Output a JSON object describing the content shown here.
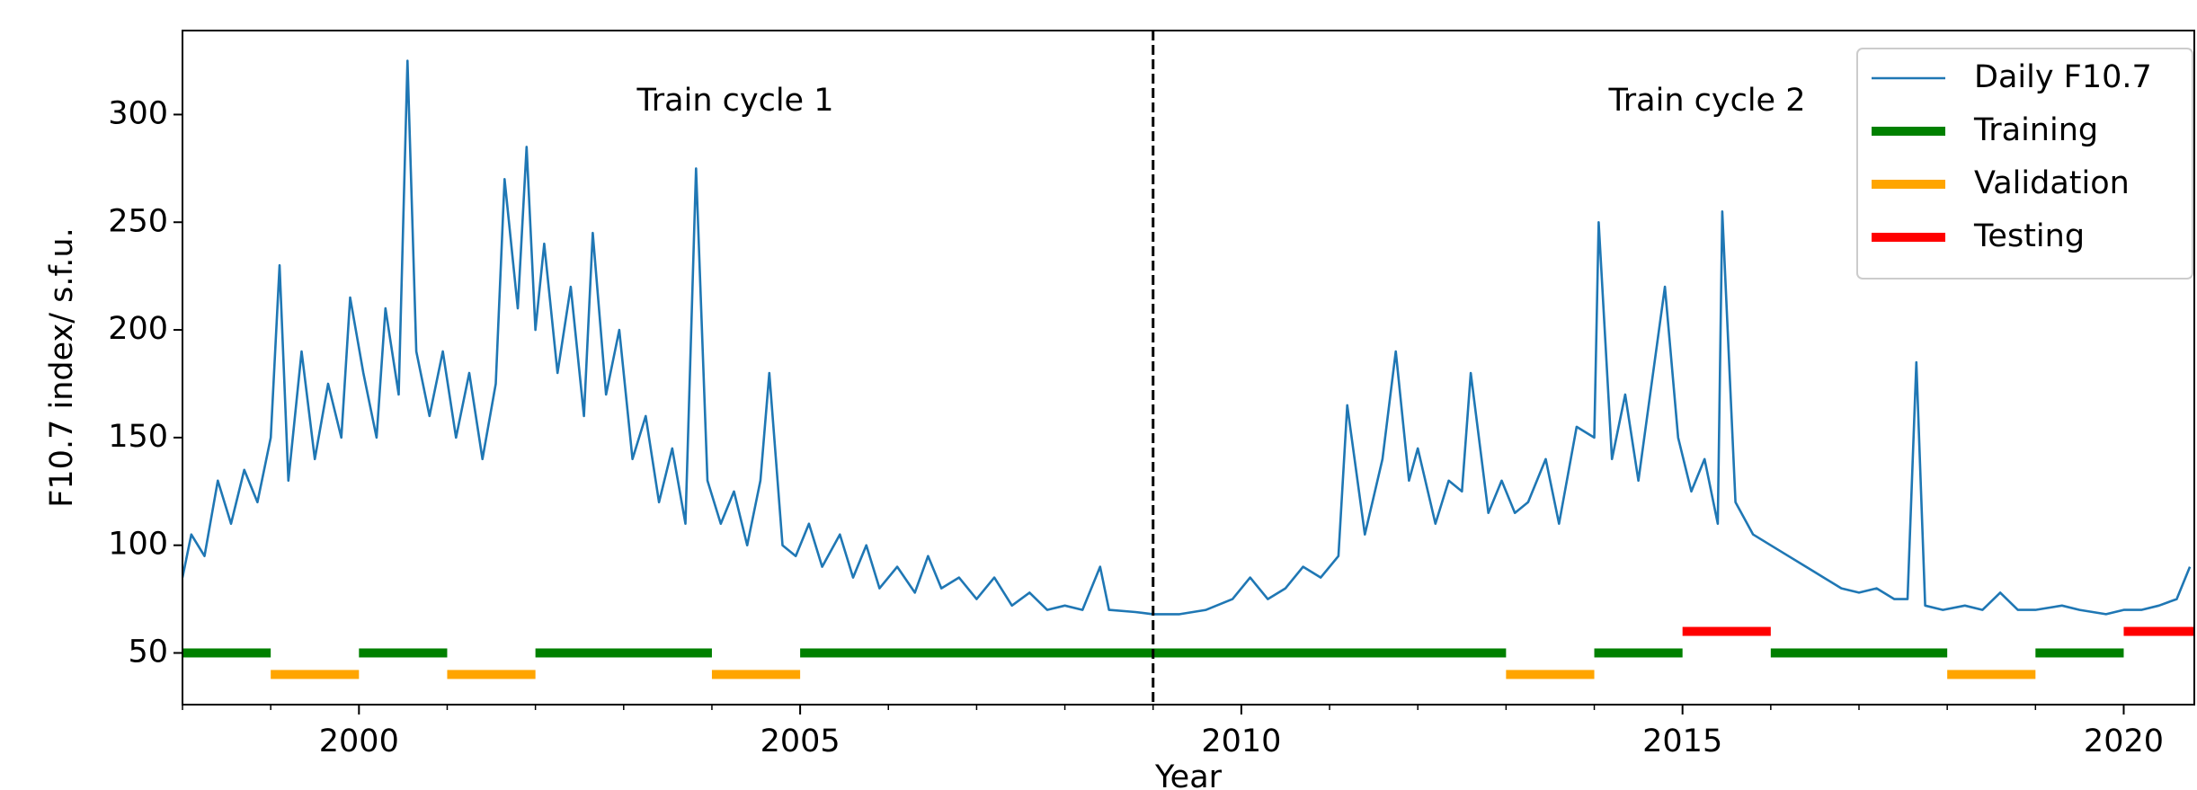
{
  "chart_data": {
    "type": "line",
    "xlabel": "Year",
    "ylabel": "F10.7 index/ s.f.u.",
    "annotations": [
      "Train cycle 1",
      "Train cycle 2"
    ],
    "xlim": [
      1998,
      2020.8
    ],
    "ylim": [
      26,
      339
    ],
    "xticks": [
      2000,
      2005,
      2010,
      2015,
      2020
    ],
    "xminorticks": [
      1998,
      1999,
      2001,
      2002,
      2003,
      2004,
      2006,
      2007,
      2008,
      2009,
      2011,
      2012,
      2013,
      2014,
      2016,
      2017,
      2018,
      2019
    ],
    "yticks": [
      50,
      100,
      150,
      200,
      250,
      300
    ],
    "vlines": [
      2009
    ],
    "legend": "upper right",
    "series": [
      {
        "name": "Daily F10.7",
        "color": "#1f77b4",
        "x": [
          1998.0,
          1998.1,
          1998.25,
          1998.4,
          1998.55,
          1998.7,
          1998.85,
          1999.0,
          1999.1,
          1999.2,
          1999.35,
          1999.5,
          1999.65,
          1999.8,
          1999.9,
          2000.05,
          2000.2,
          2000.3,
          2000.45,
          2000.55,
          2000.65,
          2000.8,
          2000.95,
          2001.1,
          2001.25,
          2001.4,
          2001.55,
          2001.65,
          2001.8,
          2001.9,
          2002.0,
          2002.1,
          2002.25,
          2002.4,
          2002.55,
          2002.65,
          2002.8,
          2002.95,
          2003.1,
          2003.25,
          2003.4,
          2003.55,
          2003.7,
          2003.82,
          2003.95,
          2004.1,
          2004.25,
          2004.4,
          2004.55,
          2004.65,
          2004.8,
          2004.95,
          2005.1,
          2005.25,
          2005.45,
          2005.6,
          2005.75,
          2005.9,
          2006.1,
          2006.3,
          2006.45,
          2006.6,
          2006.8,
          2007.0,
          2007.2,
          2007.4,
          2007.6,
          2007.8,
          2008.0,
          2008.2,
          2008.4,
          2008.5,
          2008.8,
          2009.0,
          2009.3,
          2009.6,
          2009.9,
          2010.1,
          2010.3,
          2010.5,
          2010.7,
          2010.9,
          2011.1,
          2011.2,
          2011.4,
          2011.6,
          2011.75,
          2011.9,
          2012.0,
          2012.2,
          2012.35,
          2012.5,
          2012.6,
          2012.8,
          2012.95,
          2013.1,
          2013.25,
          2013.45,
          2013.6,
          2013.8,
          2014.0,
          2014.05,
          2014.2,
          2014.35,
          2014.5,
          2014.65,
          2014.8,
          2014.95,
          2015.1,
          2015.25,
          2015.4,
          2015.45,
          2015.6,
          2015.8,
          2016.0,
          2016.2,
          2016.4,
          2016.6,
          2016.8,
          2017.0,
          2017.2,
          2017.4,
          2017.55,
          2017.65,
          2017.75,
          2017.95,
          2018.2,
          2018.4,
          2018.6,
          2018.8,
          2019.0,
          2019.3,
          2019.5,
          2019.8,
          2020.0,
          2020.2,
          2020.4,
          2020.6,
          2020.75
        ],
        "values": [
          85,
          105,
          95,
          130,
          110,
          135,
          120,
          150,
          230,
          130,
          190,
          140,
          175,
          150,
          215,
          180,
          150,
          210,
          170,
          325,
          190,
          160,
          190,
          150,
          180,
          140,
          175,
          270,
          210,
          285,
          200,
          240,
          180,
          220,
          160,
          245,
          170,
          200,
          140,
          160,
          120,
          145,
          110,
          275,
          130,
          110,
          125,
          100,
          130,
          180,
          100,
          95,
          110,
          90,
          105,
          85,
          100,
          80,
          90,
          78,
          95,
          80,
          85,
          75,
          85,
          72,
          78,
          70,
          72,
          70,
          90,
          70,
          69,
          68,
          68,
          70,
          75,
          85,
          75,
          80,
          90,
          85,
          95,
          165,
          105,
          140,
          190,
          130,
          145,
          110,
          130,
          125,
          180,
          115,
          130,
          115,
          120,
          140,
          110,
          155,
          150,
          250,
          140,
          170,
          130,
          175,
          220,
          150,
          125,
          140,
          110,
          255,
          120,
          105,
          100,
          95,
          90,
          85,
          80,
          78,
          80,
          75,
          75,
          185,
          72,
          70,
          72,
          70,
          78,
          70,
          70,
          72,
          70,
          68,
          70,
          70,
          72,
          75,
          90
        ]
      },
      {
        "name": "Training",
        "color": "green",
        "level": 50,
        "starts": [
          1998,
          2000,
          2002,
          2005,
          2014,
          2016,
          2019
        ],
        "ends": [
          1999,
          2001,
          2004,
          2013,
          2015,
          2018,
          2020
        ]
      },
      {
        "name": "Validation",
        "color": "orange",
        "level": 40,
        "starts": [
          1999,
          2001,
          2004,
          2013,
          2018
        ],
        "ends": [
          2000,
          2002,
          2005,
          2014,
          2019
        ]
      },
      {
        "name": "Testing",
        "color": "red",
        "level": 60,
        "starts": [
          2015,
          2020
        ],
        "ends": [
          2016,
          2021
        ]
      }
    ]
  }
}
